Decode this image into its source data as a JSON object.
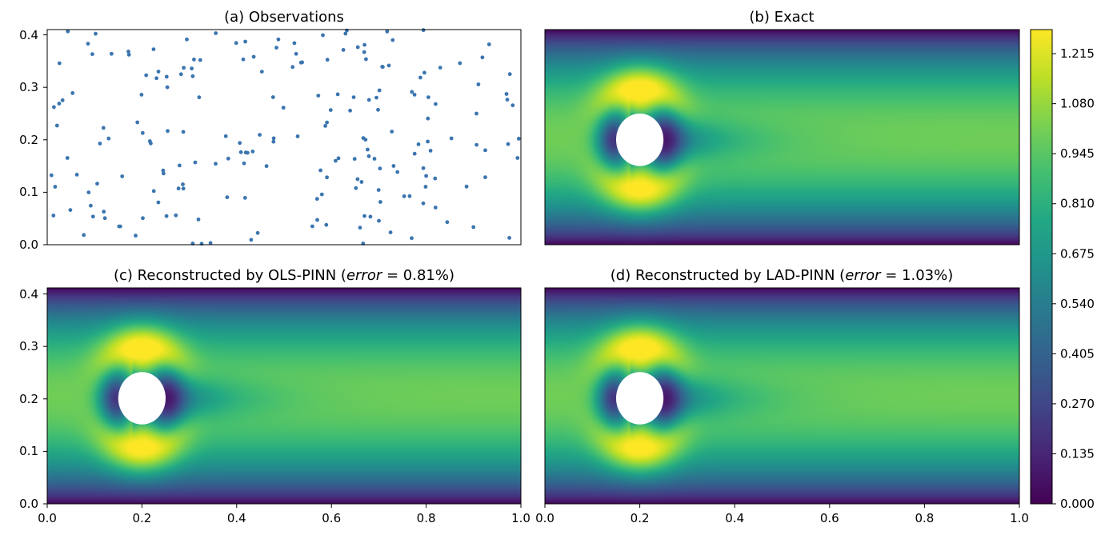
{
  "chart_data": [
    {
      "type": "scatter",
      "title": "(a) Observations",
      "xlim": [
        0,
        1.1
      ],
      "ylim": [
        0,
        0.41
      ],
      "yticks": [
        "0.0",
        "0.1",
        "0.2",
        "0.3",
        "0.4"
      ],
      "marker_color": "#3b75af",
      "note": "~200 randomly placed observation points; positions approximated",
      "n_points": 200
    },
    {
      "type": "heatmap",
      "title": "(b) Exact",
      "field": "velocity magnitude",
      "xlim": [
        0,
        1.1
      ],
      "ylim": [
        0,
        0.41
      ],
      "cylinder": {
        "cx": 0.2,
        "cy": 0.2,
        "r": 0.05
      }
    },
    {
      "type": "heatmap",
      "title_prefix": "(c) Reconstructed by OLS-PINN (",
      "title_math": "error",
      "title_suffix": " = 0.81%)",
      "error_percent": 0.81,
      "xlim": [
        0,
        1.1
      ],
      "ylim": [
        0,
        0.41
      ],
      "xticks": [
        "0.0",
        "0.2",
        "0.4",
        "0.6",
        "0.8",
        "1.0"
      ],
      "yticks": [
        "0.0",
        "0.1",
        "0.2",
        "0.3",
        "0.4"
      ],
      "cylinder": {
        "cx": 0.2,
        "cy": 0.2,
        "r": 0.05
      }
    },
    {
      "type": "heatmap",
      "title_prefix": "(d) Reconstructed by LAD-PINN (",
      "title_math": "error",
      "title_suffix": " = 1.03%)",
      "error_percent": 1.03,
      "xlim": [
        0,
        1.1
      ],
      "ylim": [
        0,
        0.41
      ],
      "xticks": [
        "0.0",
        "0.2",
        "0.4",
        "0.6",
        "0.8",
        "1.0"
      ],
      "cylinder": {
        "cx": 0.2,
        "cy": 0.2,
        "r": 0.05
      }
    }
  ],
  "colorbar": {
    "min": 0.0,
    "max": 1.28,
    "ticks": [
      "0.000",
      "0.135",
      "0.270",
      "0.405",
      "0.540",
      "0.675",
      "0.810",
      "0.945",
      "1.080",
      "1.215"
    ],
    "colormap": "viridis"
  }
}
